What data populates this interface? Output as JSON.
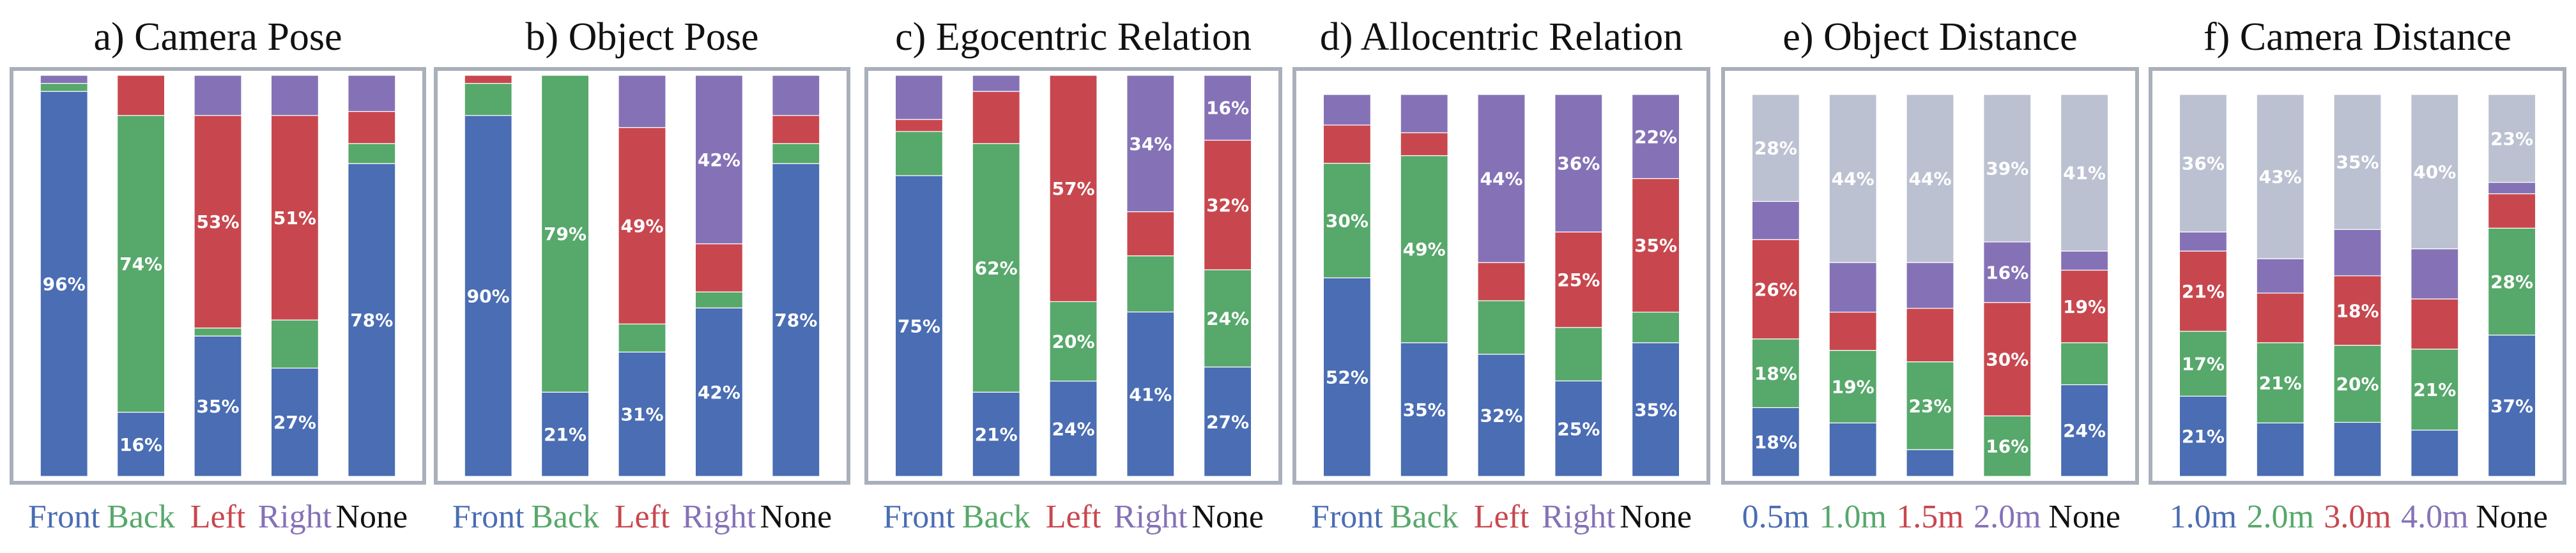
{
  "colors": {
    "blue": "#4a6db3",
    "green": "#57a86b",
    "red": "#c8474e",
    "purple": "#8572b6",
    "gray": "#bbc1d1",
    "black": "#111111"
  },
  "chart_data": [
    {
      "type": "bar",
      "stacked": true,
      "title": "a) Camera Pose",
      "categories": [
        "Front",
        "Back",
        "Left",
        "Right",
        "None"
      ],
      "category_colors": [
        "blue",
        "green",
        "red",
        "purple",
        "black"
      ],
      "series": [
        {
          "color": "blue",
          "values": [
            96,
            16,
            35,
            27,
            78
          ],
          "labels": [
            "96%",
            "16%",
            "35%",
            "27%",
            "78%"
          ]
        },
        {
          "color": "green",
          "values": [
            2,
            74,
            2,
            12,
            5
          ],
          "labels": [
            "",
            "74%",
            "",
            "",
            ""
          ]
        },
        {
          "color": "red",
          "values": [
            0,
            10,
            53,
            51,
            8
          ],
          "labels": [
            "",
            "",
            "53%",
            "51%",
            ""
          ]
        },
        {
          "color": "purple",
          "values": [
            2,
            0,
            10,
            10,
            9
          ],
          "labels": [
            "",
            "",
            "",
            "",
            ""
          ]
        }
      ]
    },
    {
      "type": "bar",
      "stacked": true,
      "title": "b) Object Pose",
      "categories": [
        "Front",
        "Back",
        "Left",
        "Right",
        "None"
      ],
      "category_colors": [
        "blue",
        "green",
        "red",
        "purple",
        "black"
      ],
      "series": [
        {
          "color": "blue",
          "values": [
            90,
            21,
            31,
            42,
            78
          ],
          "labels": [
            "90%",
            "21%",
            "31%",
            "42%",
            "78%"
          ]
        },
        {
          "color": "green",
          "values": [
            8,
            79,
            7,
            4,
            5
          ],
          "labels": [
            "",
            "79%",
            "",
            "",
            ""
          ]
        },
        {
          "color": "red",
          "values": [
            2,
            0,
            49,
            12,
            7
          ],
          "labels": [
            "",
            "",
            "49%",
            "",
            ""
          ]
        },
        {
          "color": "purple",
          "values": [
            0,
            0,
            13,
            42,
            10
          ],
          "labels": [
            "",
            "",
            "",
            "42%",
            ""
          ]
        }
      ]
    },
    {
      "type": "bar",
      "stacked": true,
      "title": "c) Egocentric Relation",
      "categories": [
        "Front",
        "Back",
        "Left",
        "Right",
        "None"
      ],
      "category_colors": [
        "blue",
        "green",
        "red",
        "purple",
        "black"
      ],
      "series": [
        {
          "color": "blue",
          "values": [
            75,
            21,
            24,
            41,
            27
          ],
          "labels": [
            "75%",
            "21%",
            "24%",
            "41%",
            "27%"
          ]
        },
        {
          "color": "green",
          "values": [
            11,
            62,
            20,
            14,
            24
          ],
          "labels": [
            "",
            "62%",
            "20%",
            "",
            "24%"
          ]
        },
        {
          "color": "red",
          "values": [
            3,
            13,
            57,
            11,
            32
          ],
          "labels": [
            "",
            "",
            "57%",
            "",
            "32%"
          ]
        },
        {
          "color": "purple",
          "values": [
            11,
            4,
            0,
            34,
            16
          ],
          "labels": [
            "",
            "",
            "",
            "34%",
            "16%"
          ]
        }
      ]
    },
    {
      "type": "bar",
      "stacked": true,
      "title": "d) Allocentric Relation",
      "categories": [
        "Front",
        "Back",
        "Left",
        "Right",
        "None"
      ],
      "category_colors": [
        "blue",
        "green",
        "red",
        "purple",
        "black"
      ],
      "series": [
        {
          "color": "blue",
          "values": [
            52,
            35,
            32,
            25,
            35
          ],
          "labels": [
            "52%",
            "35%",
            "32%",
            "25%",
            "35%"
          ]
        },
        {
          "color": "green",
          "values": [
            30,
            49,
            14,
            14,
            8
          ],
          "labels": [
            "30%",
            "49%",
            "",
            "",
            ""
          ]
        },
        {
          "color": "red",
          "values": [
            10,
            6,
            10,
            25,
            35
          ],
          "labels": [
            "",
            "",
            "",
            "25%",
            "35%"
          ]
        },
        {
          "color": "purple",
          "values": [
            8,
            10,
            44,
            36,
            22
          ],
          "labels": [
            "",
            "",
            "44%",
            "36%",
            "22%"
          ]
        }
      ]
    },
    {
      "type": "bar",
      "stacked": true,
      "title": "e) Object Distance",
      "categories": [
        "0.5m",
        "1.0m",
        "1.5m",
        "2.0m",
        "None"
      ],
      "category_colors": [
        "blue",
        "green",
        "red",
        "purple",
        "black"
      ],
      "series": [
        {
          "color": "blue",
          "values": [
            18,
            14,
            7,
            0,
            24
          ],
          "labels": [
            "18%",
            "",
            "",
            "",
            "24%"
          ]
        },
        {
          "color": "green",
          "values": [
            18,
            19,
            23,
            16,
            11
          ],
          "labels": [
            "18%",
            "19%",
            "23%",
            "16%",
            ""
          ]
        },
        {
          "color": "red",
          "values": [
            26,
            10,
            14,
            30,
            19
          ],
          "labels": [
            "26%",
            "",
            "",
            "30%",
            "19%"
          ]
        },
        {
          "color": "purple",
          "values": [
            10,
            13,
            12,
            16,
            5
          ],
          "labels": [
            "",
            "",
            "",
            "16%",
            ""
          ]
        },
        {
          "color": "gray",
          "values": [
            28,
            44,
            44,
            39,
            41
          ],
          "labels": [
            "28%",
            "44%",
            "44%",
            "39%",
            "41%"
          ]
        }
      ]
    },
    {
      "type": "bar",
      "stacked": true,
      "title": "f) Camera Distance",
      "categories": [
        "1.0m",
        "2.0m",
        "3.0m",
        "4.0m",
        "None"
      ],
      "category_colors": [
        "blue",
        "green",
        "red",
        "purple",
        "black"
      ],
      "series": [
        {
          "color": "blue",
          "values": [
            21,
            14,
            14,
            12,
            37
          ],
          "labels": [
            "21%",
            "",
            "",
            "",
            "37%"
          ]
        },
        {
          "color": "green",
          "values": [
            17,
            21,
            20,
            21,
            28
          ],
          "labels": [
            "17%",
            "21%",
            "20%",
            "21%",
            "28%"
          ]
        },
        {
          "color": "red",
          "values": [
            21,
            13,
            18,
            13,
            9
          ],
          "labels": [
            "21%",
            "",
            "18%",
            "",
            ""
          ]
        },
        {
          "color": "purple",
          "values": [
            5,
            9,
            12,
            13,
            3
          ],
          "labels": [
            "",
            "",
            "",
            "",
            ""
          ]
        },
        {
          "color": "gray",
          "values": [
            36,
            43,
            35,
            40,
            23
          ],
          "labels": [
            "36%",
            "43%",
            "35%",
            "40%",
            "23%"
          ]
        }
      ]
    }
  ]
}
